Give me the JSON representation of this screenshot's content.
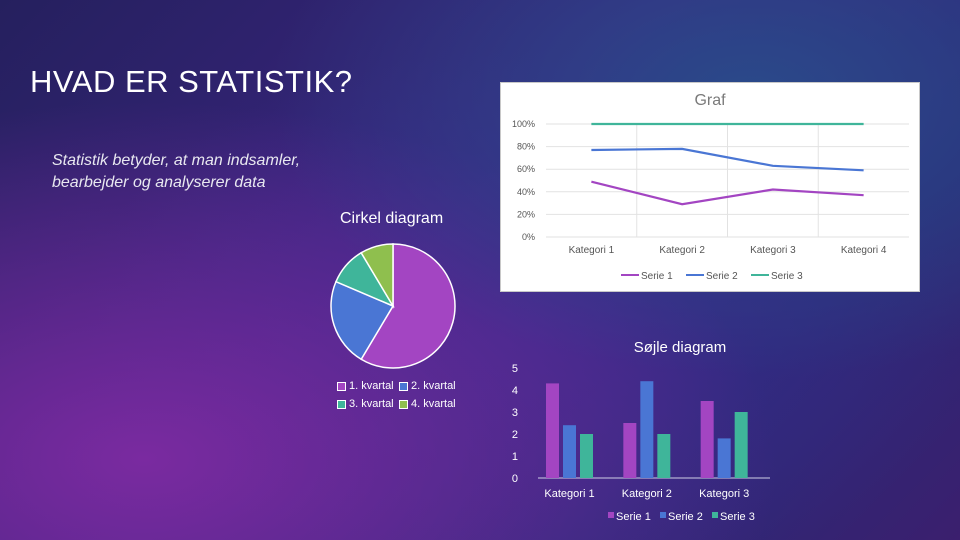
{
  "slide": {
    "title": "HVAD ER STATISTIK?",
    "subtitle": "Statistik betyder, at man indsamler, bearbejder og analyserer data",
    "pie_heading": "Cirkel diagram"
  },
  "colors": {
    "serie1": "#a345c2",
    "serie2": "#4a76d4",
    "serie3": "#3fb59a",
    "slice4": "#8fbf4e"
  },
  "chart_data": [
    {
      "type": "line",
      "title": "Graf",
      "categories": [
        "Kategori 1",
        "Kategori 2",
        "Kategori 3",
        "Kategori 4"
      ],
      "y_tick_labels": [
        "0%",
        "20%",
        "40%",
        "60%",
        "80%",
        "100%"
      ],
      "ylim": [
        0,
        1
      ],
      "series": [
        {
          "name": "Serie 1",
          "values": [
            0.49,
            0.29,
            0.42,
            0.37
          ]
        },
        {
          "name": "Serie 2",
          "values": [
            0.77,
            0.78,
            0.63,
            0.59
          ]
        },
        {
          "name": "Serie 3",
          "values": [
            1.0,
            1.0,
            1.0,
            1.0
          ]
        }
      ],
      "legend": "bottom"
    },
    {
      "type": "pie",
      "categories": [
        "1. kvartal",
        "2. kvartal",
        "3. kvartal",
        "4. kvartal"
      ],
      "values": [
        8.2,
        3.2,
        1.4,
        1.2
      ],
      "legend": "bottom"
    },
    {
      "type": "bar",
      "title": "Søjle diagram",
      "categories": [
        "Kategori 1",
        "Kategori 2",
        "Kategori 3"
      ],
      "y_tick_labels": [
        "0",
        "1",
        "2",
        "3",
        "4",
        "5"
      ],
      "ylim": [
        0,
        5
      ],
      "series": [
        {
          "name": "Serie 1",
          "values": [
            4.3,
            2.5,
            3.5
          ]
        },
        {
          "name": "Serie 2",
          "values": [
            2.4,
            4.4,
            1.8
          ]
        },
        {
          "name": "Serie 3",
          "values": [
            2.0,
            2.0,
            3.0
          ]
        }
      ],
      "legend": "bottom"
    }
  ]
}
